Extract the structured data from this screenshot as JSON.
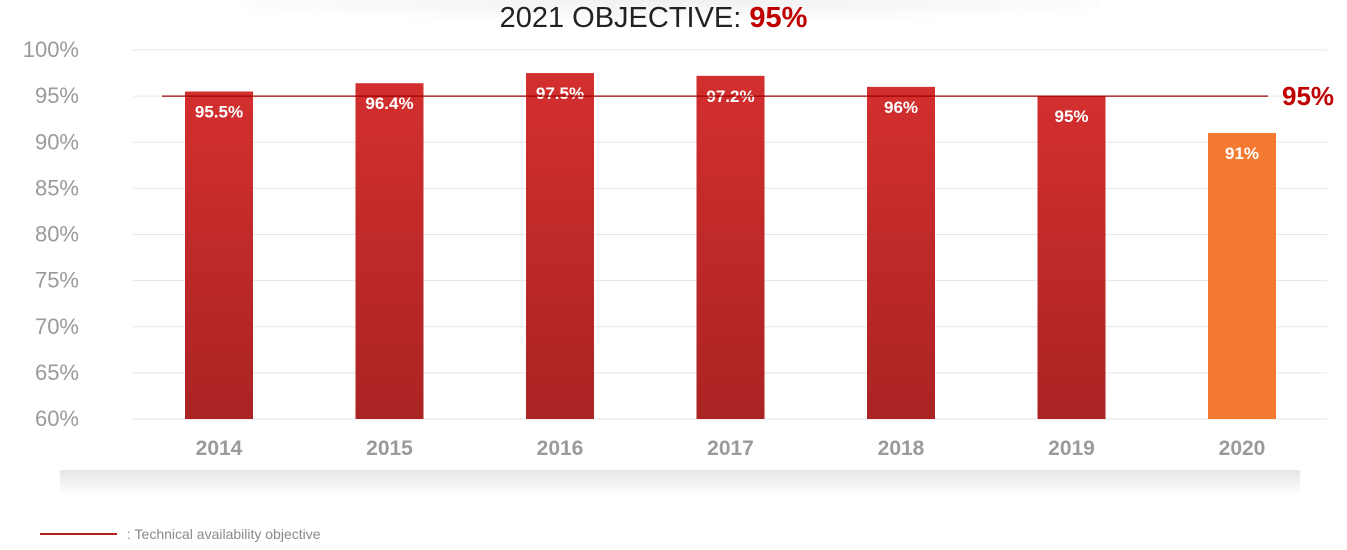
{
  "title_prefix": "2021 OBJECTIVE: ",
  "title_value": "95%",
  "objective_label": "95%",
  "legend_text": ": Technical availability objective",
  "colors": {
    "bar_top": "#d32f2f",
    "bar_bottom": "#ab2323",
    "bar_highlight": "#f47a32",
    "objective_line": "#a00000",
    "objective_text": "#c00000",
    "axis_text": "#9a9a9a",
    "grid": "#e6e6e6"
  },
  "chart_data": {
    "type": "bar",
    "categories": [
      "2014",
      "2015",
      "2016",
      "2017",
      "2018",
      "2019",
      "2020"
    ],
    "values": [
      95.5,
      96.4,
      97.5,
      97.2,
      96,
      95,
      91
    ],
    "value_labels": [
      "95.5%",
      "96.4%",
      "97.5%",
      "97.2%",
      "96%",
      "95%",
      "91%"
    ],
    "y_ticks": [
      60,
      65,
      70,
      75,
      80,
      85,
      90,
      95,
      100
    ],
    "y_tick_labels": [
      "60%",
      "65%",
      "70%",
      "75%",
      "80%",
      "85%",
      "90%",
      "95%",
      "100%"
    ],
    "ylim": [
      60,
      100
    ],
    "objective": 95,
    "highlight_category": "2020",
    "grid": true,
    "legend": "bottom-left"
  }
}
